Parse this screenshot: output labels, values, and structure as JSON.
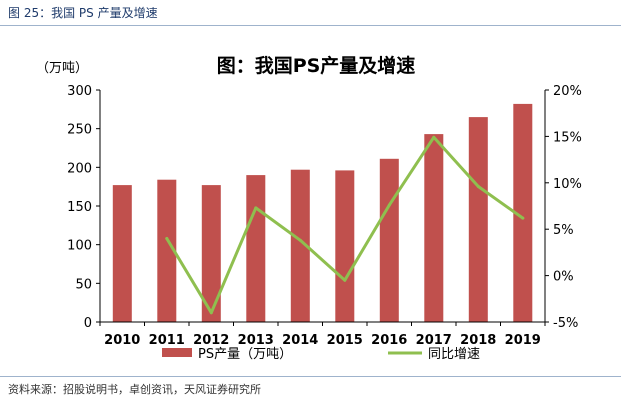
{
  "header": {
    "figure_caption": "图 25：我国 PS 产量及增速"
  },
  "footer": {
    "source": "资料来源：招股说明书，卓创资讯，天风证券研究所"
  },
  "colors": {
    "bar": "#c0504d",
    "line": "#8fbf4f",
    "rule": "#9fb3cc"
  },
  "chart_data": {
    "type": "bar",
    "title": "图：我国PS产量及增速",
    "ylabel": "（万吨）",
    "categories": [
      "2010",
      "2011",
      "2012",
      "2013",
      "2014",
      "2015",
      "2016",
      "2017",
      "2018",
      "2019"
    ],
    "ylim": [
      0,
      300
    ],
    "yticks": [
      0,
      50,
      100,
      150,
      200,
      250,
      300
    ],
    "y2lim": [
      -5,
      20
    ],
    "y2ticks": [
      "-5%",
      "0%",
      "5%",
      "10%",
      "15%",
      "20%"
    ],
    "y2tick_values": [
      -5,
      0,
      5,
      10,
      15,
      20
    ],
    "legend_position": "bottom",
    "grid": false,
    "series": [
      {
        "name": "PS产量（万吨）",
        "type": "bar",
        "axis": "left",
        "values": [
          177,
          184,
          177,
          190,
          197,
          196,
          211,
          243,
          265,
          282
        ]
      },
      {
        "name": "同比增速",
        "type": "line",
        "axis": "right",
        "values": [
          null,
          4.0,
          -4.0,
          7.3,
          3.8,
          -0.5,
          7.6,
          14.9,
          9.6,
          6.2
        ]
      }
    ]
  }
}
